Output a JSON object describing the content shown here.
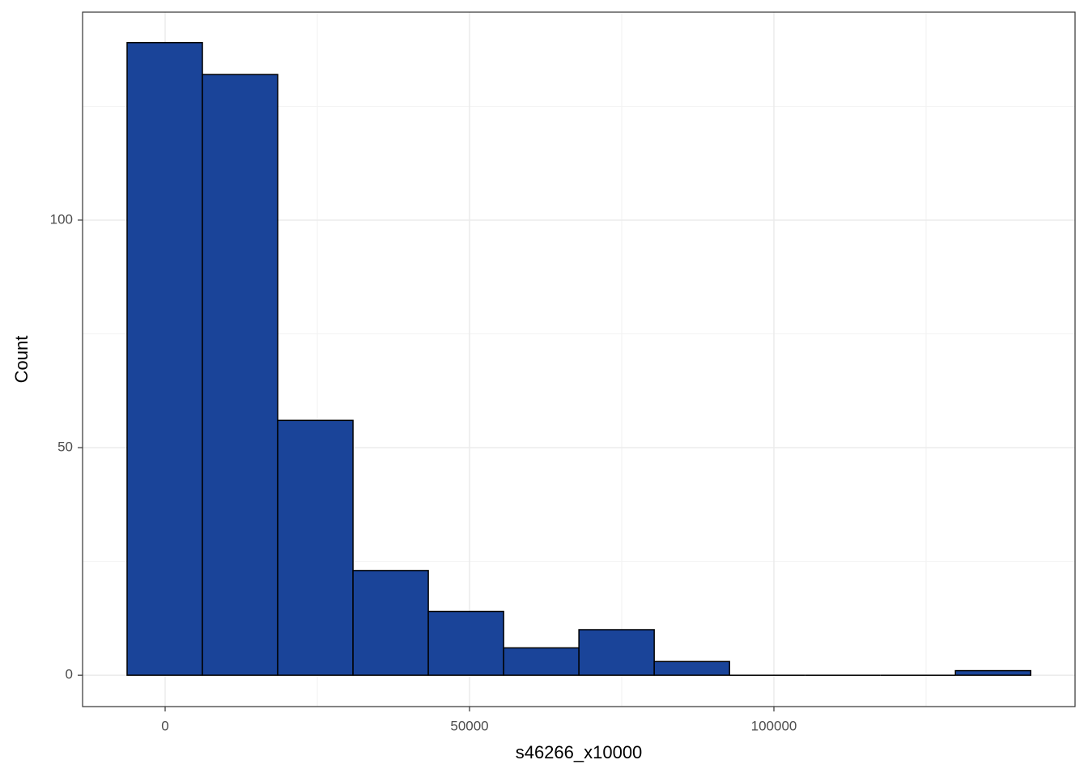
{
  "chart_data": {
    "type": "histogram",
    "x_label": "s46266_x10000",
    "y_label": "Count",
    "bins": [
      -6250,
      6120,
      18490,
      30860,
      43230,
      55600,
      67970,
      80340,
      92710,
      105080,
      117450,
      129820,
      142190
    ],
    "values": [
      139,
      132,
      56,
      23,
      14,
      6,
      10,
      3,
      0,
      0,
      0,
      1
    ],
    "color": "#1a4499",
    "xlim": [
      -13564,
      149468
    ],
    "ylim": [
      -6.9,
      145.7
    ],
    "xticks": [
      0,
      50000,
      100000
    ],
    "yticks": [
      0,
      50,
      100
    ],
    "grid": true
  }
}
